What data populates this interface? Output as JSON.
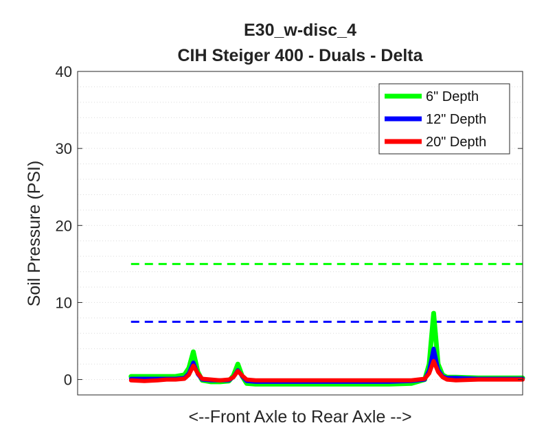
{
  "chart_data": {
    "type": "line",
    "title_lines": [
      "E30_w-disc_4",
      "CIH Steiger 400 - Duals - Delta"
    ],
    "xlabel": "<--Front Axle to Rear Axle -->",
    "ylabel": "Soil Pressure (PSI)",
    "ylim": [
      -2,
      40
    ],
    "xlim": [
      0,
      100
    ],
    "yticks": [
      0,
      10,
      20,
      30,
      40
    ],
    "ytick_labels": [
      "0",
      "10",
      "20",
      "30",
      "40"
    ],
    "minor_grid_step": 2,
    "legend_position": "top-right",
    "colors": {
      "six": "#00ff00",
      "twelve": "#0000ff",
      "twenty": "#ff0000",
      "grid": "#d9d9d9",
      "axis": "#262626"
    },
    "series": [
      {
        "key": "six",
        "name": "6\" Depth",
        "color": "#00ff00",
        "x": [
          12,
          15,
          18,
          20,
          22,
          24,
          25,
          26,
          27,
          28,
          30,
          32,
          34,
          35,
          36,
          37,
          38,
          40,
          45,
          50,
          55,
          60,
          65,
          70,
          75,
          78,
          79,
          80,
          81,
          82,
          83,
          85,
          90,
          95,
          100
        ],
        "y": [
          0.4,
          0.4,
          0.4,
          0.4,
          0.4,
          0.6,
          1.5,
          3.6,
          1.0,
          -0.1,
          -0.3,
          -0.3,
          -0.2,
          0.5,
          2.0,
          0.4,
          -0.5,
          -0.6,
          -0.6,
          -0.6,
          -0.6,
          -0.6,
          -0.6,
          -0.6,
          -0.5,
          0.0,
          2.0,
          8.6,
          2.0,
          0.6,
          0.3,
          0.3,
          0.2,
          0.2,
          0.2
        ]
      },
      {
        "key": "twelve",
        "name": "12\" Depth",
        "color": "#0000ff",
        "x": [
          12,
          15,
          18,
          20,
          22,
          24,
          25,
          26,
          27,
          28,
          30,
          32,
          34,
          35,
          36,
          37,
          38,
          40,
          45,
          50,
          55,
          60,
          65,
          70,
          75,
          78,
          79,
          80,
          81,
          82,
          83,
          85,
          90,
          95,
          100
        ],
        "y": [
          0.1,
          0.1,
          0.1,
          0.1,
          0.1,
          0.2,
          0.8,
          2.2,
          0.7,
          0.0,
          -0.1,
          -0.1,
          -0.1,
          0.3,
          1.2,
          0.4,
          -0.2,
          -0.3,
          -0.3,
          -0.3,
          -0.3,
          -0.3,
          -0.3,
          -0.3,
          -0.2,
          0.0,
          1.2,
          4.0,
          1.3,
          0.4,
          0.2,
          0.2,
          0.1,
          0.1,
          0.1
        ]
      },
      {
        "key": "twenty",
        "name": "20\" Depth",
        "color": "#ff0000",
        "x": [
          12,
          15,
          18,
          20,
          22,
          24,
          25,
          26,
          27,
          28,
          30,
          32,
          34,
          35,
          36,
          37,
          38,
          40,
          45,
          50,
          55,
          60,
          65,
          70,
          75,
          78,
          79,
          80,
          81,
          82,
          83,
          85,
          90,
          95,
          100
        ],
        "y": [
          -0.1,
          -0.2,
          -0.1,
          0.0,
          0.0,
          0.1,
          0.6,
          1.8,
          0.8,
          0.1,
          0.0,
          -0.1,
          0.0,
          0.3,
          1.1,
          0.5,
          0.0,
          -0.1,
          -0.1,
          -0.1,
          -0.1,
          -0.1,
          -0.1,
          -0.1,
          -0.1,
          0.1,
          0.8,
          2.4,
          1.0,
          0.3,
          0.0,
          -0.1,
          0.0,
          0.0,
          0.0
        ]
      }
    ],
    "threshold_lines": [
      {
        "key": "six",
        "value": 15,
        "x_start": 12,
        "x_end": 100,
        "color": "#00ff00",
        "style": "dashed"
      },
      {
        "key": "twelve",
        "value": 7.5,
        "x_start": 12,
        "x_end": 100,
        "color": "#0000ff",
        "style": "dashed"
      }
    ]
  }
}
